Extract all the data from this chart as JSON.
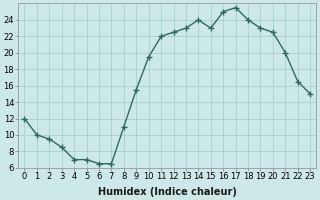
{
  "x": [
    0,
    1,
    2,
    3,
    4,
    5,
    6,
    7,
    8,
    9,
    10,
    11,
    12,
    13,
    14,
    15,
    16,
    17,
    18,
    19,
    20,
    21,
    22,
    23
  ],
  "y": [
    12,
    10,
    9.5,
    8.5,
    7,
    7,
    6.5,
    6.5,
    11,
    15.5,
    19.5,
    22,
    22.5,
    23,
    24,
    23,
    25,
    25.5,
    24,
    23,
    22.5,
    20,
    16.5,
    15
  ],
  "line_color": "#2e6b5e",
  "marker": "+",
  "marker_size": 4,
  "marker_lw": 1.0,
  "bg_color": "#cde8e8",
  "grid_color": "#aacfcf",
  "xlabel": "Humidex (Indice chaleur)",
  "xlim": [
    -0.5,
    23.5
  ],
  "ylim": [
    6,
    26
  ],
  "yticks": [
    6,
    8,
    10,
    12,
    14,
    16,
    18,
    20,
    22,
    24
  ],
  "xticks": [
    0,
    1,
    2,
    3,
    4,
    5,
    6,
    7,
    8,
    9,
    10,
    11,
    12,
    13,
    14,
    15,
    16,
    17,
    18,
    19,
    20,
    21,
    22,
    23
  ],
  "xlabel_fontsize": 7,
  "tick_fontsize": 6,
  "line_width": 1.0
}
